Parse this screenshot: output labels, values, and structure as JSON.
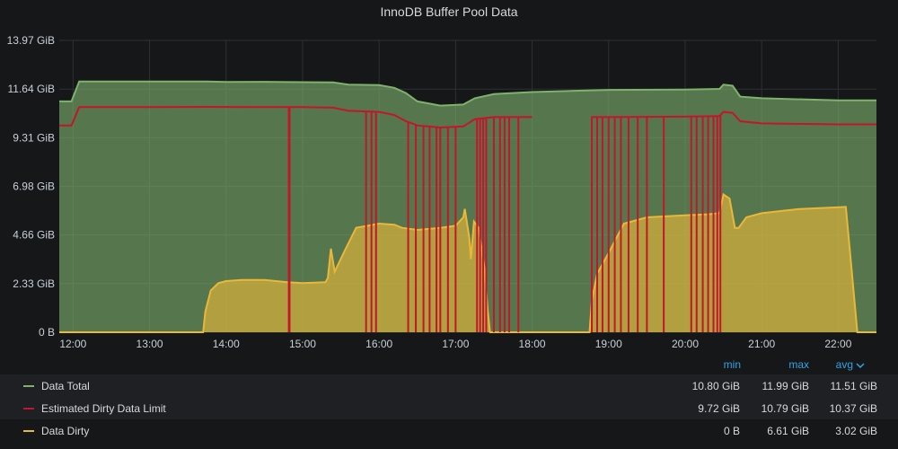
{
  "panel": {
    "title": "InnoDB Buffer Pool Data"
  },
  "colors": {
    "background": "#161719",
    "grid": "#2f3034",
    "total": "#7eb26d",
    "limit": "#c4162a",
    "dirty": "#eab839",
    "legend_header": "#33a2e5"
  },
  "legend": {
    "headers": {
      "min": "min",
      "max": "max",
      "avg": "avg",
      "sort_icon": "chevron-down-icon"
    },
    "rows": [
      {
        "name": "Data Total",
        "color": "#7eb26d",
        "min": "10.80 GiB",
        "max": "11.99 GiB",
        "avg": "11.51 GiB"
      },
      {
        "name": "Estimated Dirty Data Limit",
        "color": "#c4162a",
        "min": "9.72 GiB",
        "max": "10.79 GiB",
        "avg": "10.37 GiB"
      },
      {
        "name": "Data Dirty",
        "color": "#eab839",
        "min": "0 B",
        "max": "6.61 GiB",
        "avg": "3.02 GiB"
      }
    ]
  },
  "chart_data": {
    "type": "area",
    "title": "InnoDB Buffer Pool Data",
    "x_unit": "hours",
    "xlim": [
      11.82,
      22.5
    ],
    "ylim": [
      0,
      13.97
    ],
    "y_ticks": [
      {
        "value": 0,
        "label": "0 B"
      },
      {
        "value": 2.33,
        "label": "2.33 GiB"
      },
      {
        "value": 4.66,
        "label": "4.66 GiB"
      },
      {
        "value": 6.98,
        "label": "6.98 GiB"
      },
      {
        "value": 9.31,
        "label": "9.31 GiB"
      },
      {
        "value": 11.64,
        "label": "11.64 GiB"
      },
      {
        "value": 13.97,
        "label": "13.97 GiB"
      }
    ],
    "x_ticks": [
      {
        "value": 12,
        "label": "12:00"
      },
      {
        "value": 13,
        "label": "13:00"
      },
      {
        "value": 14,
        "label": "14:00"
      },
      {
        "value": 15,
        "label": "15:00"
      },
      {
        "value": 16,
        "label": "16:00"
      },
      {
        "value": 17,
        "label": "17:00"
      },
      {
        "value": 18,
        "label": "18:00"
      },
      {
        "value": 19,
        "label": "19:00"
      },
      {
        "value": 20,
        "label": "20:00"
      },
      {
        "value": 21,
        "label": "21:00"
      },
      {
        "value": 22,
        "label": "22:00"
      }
    ],
    "grid": true,
    "legend_position": "bottom",
    "series": [
      {
        "name": "Data Total",
        "color": "#7eb26d",
        "fill": true,
        "points": [
          [
            11.82,
            11.05
          ],
          [
            11.98,
            11.05
          ],
          [
            12.08,
            12.0
          ],
          [
            13.0,
            12.0
          ],
          [
            13.75,
            12.0
          ],
          [
            14.0,
            11.98
          ],
          [
            14.5,
            11.99
          ],
          [
            15.0,
            11.97
          ],
          [
            15.4,
            11.96
          ],
          [
            15.6,
            11.85
          ],
          [
            16.0,
            11.83
          ],
          [
            16.2,
            11.7
          ],
          [
            16.35,
            11.45
          ],
          [
            16.5,
            11.05
          ],
          [
            16.8,
            10.85
          ],
          [
            17.1,
            10.9
          ],
          [
            17.25,
            11.2
          ],
          [
            17.5,
            11.4
          ],
          [
            18.0,
            11.5
          ],
          [
            19.0,
            11.6
          ],
          [
            20.0,
            11.62
          ],
          [
            20.45,
            11.65
          ],
          [
            20.5,
            11.85
          ],
          [
            20.62,
            11.8
          ],
          [
            20.72,
            11.28
          ],
          [
            21.0,
            11.2
          ],
          [
            22.0,
            11.1
          ],
          [
            22.5,
            11.1
          ]
        ]
      },
      {
        "name": "Estimated Dirty Data Limit",
        "color": "#c4162a",
        "fill": false,
        "points": [
          [
            11.82,
            9.9
          ],
          [
            11.98,
            9.9
          ],
          [
            12.08,
            10.78
          ],
          [
            13.0,
            10.78
          ],
          [
            13.75,
            10.79
          ],
          [
            14.5,
            10.78
          ],
          [
            15.0,
            10.78
          ],
          [
            15.4,
            10.75
          ],
          [
            15.6,
            10.6
          ],
          [
            16.0,
            10.55
          ],
          [
            16.2,
            10.4
          ],
          [
            16.35,
            10.1
          ],
          [
            16.5,
            9.9
          ],
          [
            16.8,
            9.8
          ],
          [
            17.1,
            9.85
          ],
          [
            17.25,
            10.2
          ],
          [
            17.5,
            10.3
          ],
          [
            18.0,
            10.3
          ],
          [
            18.05,
            null
          ],
          [
            18.77,
            10.3
          ],
          [
            19.0,
            10.3
          ],
          [
            20.0,
            10.32
          ],
          [
            20.45,
            10.35
          ],
          [
            20.5,
            10.55
          ],
          [
            20.62,
            10.5
          ],
          [
            20.72,
            10.1
          ],
          [
            21.0,
            10.0
          ],
          [
            22.0,
            9.95
          ],
          [
            22.5,
            9.95
          ]
        ]
      },
      {
        "name": "Data Dirty",
        "color": "#eab839",
        "fill": true,
        "points": [
          [
            11.82,
            0
          ],
          [
            13.7,
            0
          ],
          [
            13.73,
            1.0
          ],
          [
            13.8,
            2.0
          ],
          [
            13.9,
            2.35
          ],
          [
            14.0,
            2.45
          ],
          [
            14.2,
            2.5
          ],
          [
            14.5,
            2.5
          ],
          [
            14.8,
            2.4
          ],
          [
            15.0,
            2.35
          ],
          [
            15.3,
            2.4
          ],
          [
            15.33,
            2.6
          ],
          [
            15.37,
            4.0
          ],
          [
            15.42,
            2.9
          ],
          [
            15.55,
            3.9
          ],
          [
            15.7,
            5.0
          ],
          [
            15.85,
            5.1
          ],
          [
            16.0,
            5.2
          ],
          [
            16.2,
            5.15
          ],
          [
            16.3,
            5.0
          ],
          [
            16.5,
            4.9
          ],
          [
            16.8,
            5.0
          ],
          [
            17.0,
            5.1
          ],
          [
            17.1,
            5.5
          ],
          [
            17.12,
            5.9
          ],
          [
            17.18,
            4.5
          ],
          [
            17.2,
            3.5
          ],
          [
            17.24,
            5.3
          ],
          [
            17.3,
            5.0
          ],
          [
            17.38,
            3.0
          ],
          [
            17.42,
            1.0
          ],
          [
            17.45,
            0
          ],
          [
            18.75,
            0
          ],
          [
            18.78,
            1.5
          ],
          [
            18.85,
            2.8
          ],
          [
            19.0,
            3.8
          ],
          [
            19.2,
            5.2
          ],
          [
            19.5,
            5.5
          ],
          [
            20.0,
            5.6
          ],
          [
            20.3,
            5.65
          ],
          [
            20.45,
            5.7
          ],
          [
            20.5,
            6.6
          ],
          [
            20.58,
            6.4
          ],
          [
            20.65,
            5.0
          ],
          [
            20.7,
            5.0
          ],
          [
            20.8,
            5.5
          ],
          [
            21.0,
            5.7
          ],
          [
            21.5,
            5.9
          ],
          [
            22.1,
            6.0
          ],
          [
            22.15,
            4.0
          ],
          [
            22.25,
            0
          ],
          [
            22.5,
            0
          ]
        ]
      }
    ],
    "limit_drop_times": [
      14.82,
      14.83,
      15.83,
      15.9,
      15.96,
      16.38,
      16.48,
      16.58,
      16.66,
      16.75,
      16.8,
      16.9,
      17.0,
      17.28,
      17.32,
      17.36,
      17.4,
      17.5,
      17.58,
      17.64,
      17.7,
      17.82,
      18.78,
      18.85,
      18.92,
      19.0,
      19.08,
      19.16,
      19.26,
      19.38,
      19.5,
      19.72,
      20.08,
      20.15,
      20.23,
      20.3,
      20.37,
      20.42,
      20.46
    ]
  }
}
